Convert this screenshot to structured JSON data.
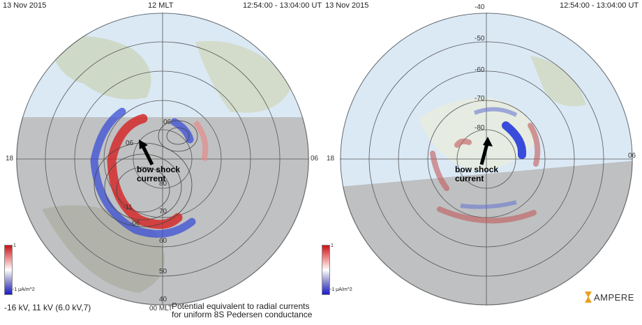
{
  "left_panel": {
    "date": "13 Nov 2015",
    "mlt_top": "12 MLT",
    "time_range": "12:54:00  -  13:04:00  UT",
    "mlt_left": "18",
    "mlt_right": "06",
    "mlt_bottom": "00 MLT",
    "lat_labels": [
      "80",
      "70",
      "60",
      "50",
      "40"
    ],
    "contour_labels": [
      "06",
      "06",
      "-11",
      "-06"
    ],
    "annotation_line1": "bow shock",
    "annotation_line2": "current",
    "colorbar_top": "1",
    "colorbar_bottom": "-1 μA/m^2",
    "footer_stats": "-16 kV, 11 kV (6.0 kV,7)",
    "footer_caption_line1": "Potential equivalent to radial currents",
    "footer_caption_line2": "for uniform 8S Pedersen conductance"
  },
  "right_panel": {
    "date": "13 Nov 2015",
    "time_range": "12:54:00  -  13:04:00  UT",
    "mlt_left": "18",
    "mlt_right": "06",
    "lat_labels": [
      "-40",
      "-50",
      "-60",
      "-70",
      "-80"
    ],
    "annotation_line1": "bow shock",
    "annotation_line2": "current",
    "colorbar_top": "1",
    "colorbar_bottom": "-1 μA/m^2",
    "logo_text": "AMPERE"
  },
  "colors": {
    "positive": "#d42a2a",
    "negative": "#2a3fd4",
    "night": "#bcbcbc",
    "sky": "#dbe9f5"
  }
}
